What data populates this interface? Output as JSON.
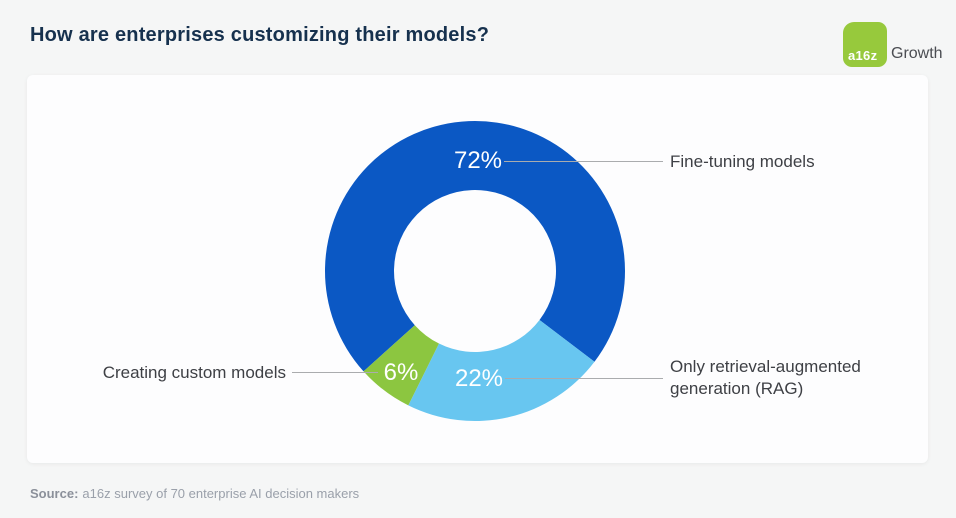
{
  "header": {
    "title": "How are enterprises customizing their models?",
    "logo": {
      "square_label": "a16z",
      "suffix": "Growth",
      "green": "#97c93c"
    }
  },
  "chart_data": {
    "type": "pie",
    "subtype": "donut",
    "title": "How are enterprises customizing their models?",
    "start_angle_deg": 228,
    "inner_radius_ratio": 0.54,
    "legend_position": "callout",
    "slices": [
      {
        "label": "Fine-tuning models",
        "value": 72,
        "display": "72%",
        "color": "#0b58c4"
      },
      {
        "label": "Only retrieval-augmented generation (RAG)",
        "value": 22,
        "display": "22%",
        "color": "#68c6f0"
      },
      {
        "label": "Creating custom models",
        "value": 6,
        "display": "6%",
        "color": "#8cc640"
      }
    ]
  },
  "source": {
    "prefix": "Source:",
    "text": "a16z survey of 70 enterprise AI decision makers"
  }
}
